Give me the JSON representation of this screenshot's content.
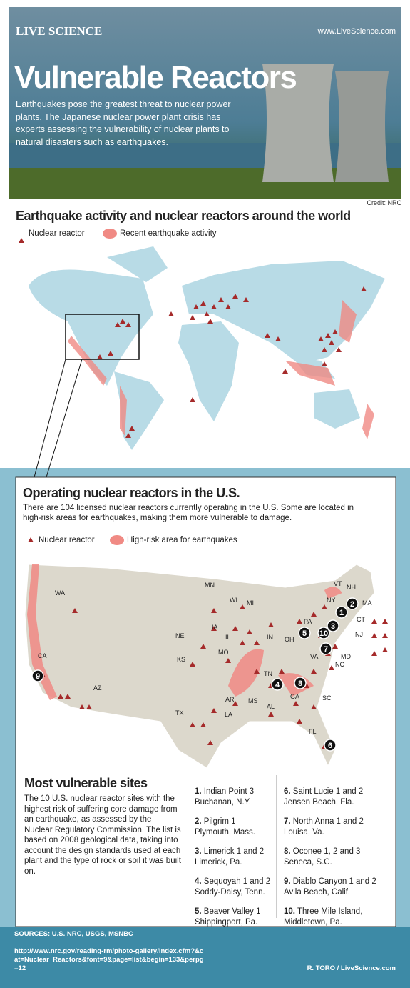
{
  "header": {
    "logo": "LIVE SCIENCE",
    "url": "www.LiveScience.com",
    "title": "Vulnerable Reactors",
    "intro": "Earthquakes pose the greatest threat to nuclear power plants. The Japanese nuclear power plant crisis has experts assessing the vulnerability of nuclear plants to natural disasters such as earthquakes.",
    "credit": "Credit: NRC"
  },
  "world": {
    "title": "Earthquake activity and nuclear reactors around the world",
    "legend": [
      "Nuclear reactor",
      "Recent earthquake activity"
    ]
  },
  "us": {
    "title": "Operating nuclear reactors in the U.S.",
    "intro": "There are 104 licensed nuclear reactors currently operating in the U.S. Some are located in high-risk areas for earthquakes, making them more vulnerable to damage.",
    "legend": [
      "Nuclear reactor",
      "High-risk area for earthquakes"
    ],
    "states": [
      "WA",
      "MN",
      "WI",
      "MI",
      "VT",
      "NH",
      "NY",
      "MA",
      "CT",
      "PA",
      "NJ",
      "OH",
      "NE",
      "IA",
      "IL",
      "IN",
      "MD",
      "VA",
      "NC",
      "KS",
      "MO",
      "CA",
      "TN",
      "AZ",
      "AR",
      "GA",
      "SC",
      "MS",
      "AL",
      "TX",
      "LA",
      "FL"
    ],
    "markers": [
      "1",
      "2",
      "3",
      "4",
      "5",
      "6",
      "7",
      "8",
      "9",
      "10"
    ]
  },
  "vulnerable": {
    "title": "Most vulnerable sites",
    "text": "The 10 U.S. nuclear reactor sites with the highest risk of suffering core damage from an earthquake, as assessed by the Nuclear Regulatory Commission. The list is based on 2008 geological data, taking into account the design standards used at each plant and the type of rock or soil it was built on.",
    "sites": [
      {
        "number": "1.",
        "name": "Indian Point 3",
        "place": "Buchanan, N.Y."
      },
      {
        "number": "2.",
        "name": "Pilgrim 1",
        "place": "Plymouth, Mass."
      },
      {
        "number": "3.",
        "name": "Limerick 1 and 2",
        "place": "Limerick, Pa."
      },
      {
        "number": "4.",
        "name": "Sequoyah 1 and 2",
        "place": "Soddy-Daisy, Tenn."
      },
      {
        "number": "5.",
        "name": "Beaver Valley 1",
        "place": "Shippingport, Pa."
      },
      {
        "number": "6.",
        "name": "Saint Lucie 1 and 2",
        "place": "Jensen Beach, Fla."
      },
      {
        "number": "7.",
        "name": "North Anna 1 and 2",
        "place": "Louisa, Va."
      },
      {
        "number": "8.",
        "name": "Oconee 1, 2 and 3",
        "place": "Seneca, S.C."
      },
      {
        "number": "9.",
        "name": "Diablo Canyon 1 and 2",
        "place": "Avila Beach, Calif."
      },
      {
        "number": "10.",
        "name": "Three Mile Island,",
        "place": "Middletown, Pa."
      }
    ]
  },
  "footer": {
    "sources": "SOURCES: U.S. NRC, USGS, MSNBC",
    "link": "http://www.nrc.gov/reading-rm/photo-gallery/index.cfm?&cat=Nuclear_Reactors&font=9&page=list&begin=133&perpg=12",
    "credit": "R. TORO / LiveScience.com"
  }
}
